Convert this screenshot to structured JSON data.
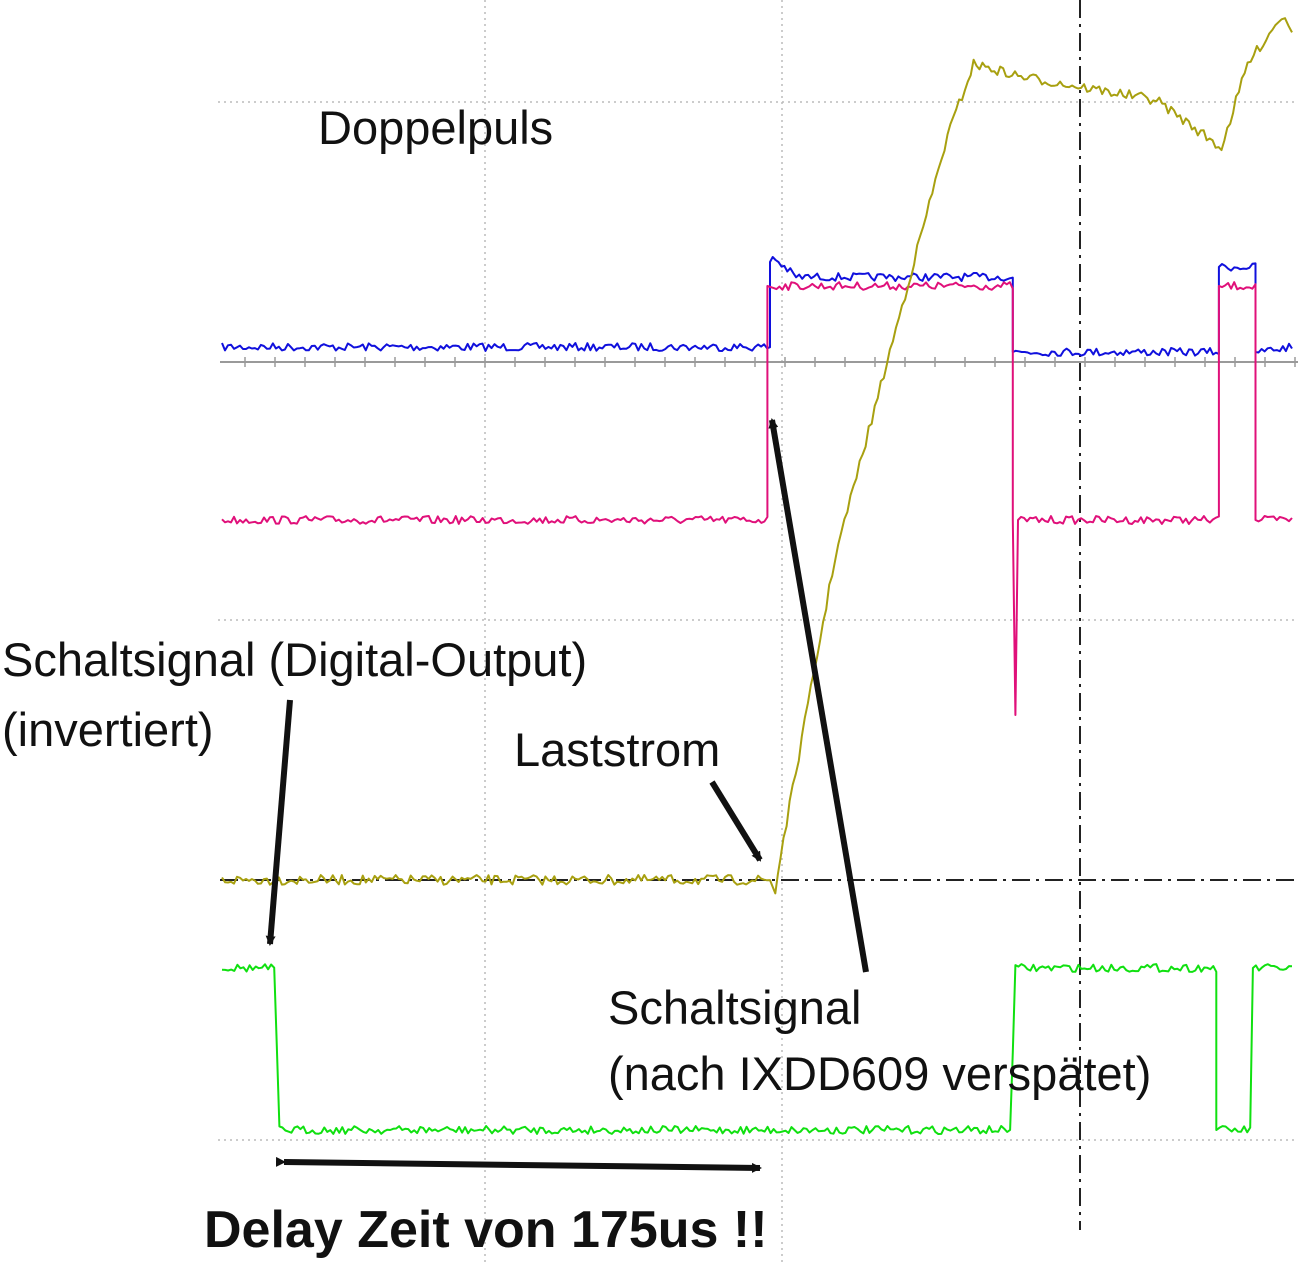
{
  "chart_data": {
    "type": "line",
    "title": "Doppelpuls",
    "xlabel": "",
    "ylabel": "",
    "grid": true,
    "time_unit": "us",
    "x_range": [
      -10,
      400
    ],
    "grid_x_divisions": 10,
    "series": [
      {
        "name": "Schaltsignal (nach IXDD609 verspätet)",
        "color": "#1010dd",
        "points": [
          [
            -10,
            0.05
          ],
          [
            200,
            0.05
          ],
          [
            200,
            0.9
          ],
          [
            201,
            0.95
          ],
          [
            210,
            0.75
          ],
          [
            293,
            0.75
          ],
          [
            293,
            0.0
          ],
          [
            372,
            0.0
          ],
          [
            372,
            0.85
          ],
          [
            386,
            0.85
          ],
          [
            386,
            0.0
          ],
          [
            400,
            0.05
          ]
        ]
      },
      {
        "name": "Schaltsignal (nach IXDD609 verspätet)",
        "color": "#e0107a",
        "points": [
          [
            -10,
            0.0
          ],
          [
            199,
            0.0
          ],
          [
            199,
            0.9
          ],
          [
            293,
            0.9
          ],
          [
            293,
            0.0
          ],
          [
            294,
            -0.75
          ],
          [
            295,
            0.0
          ],
          [
            372,
            0.0
          ],
          [
            372,
            0.9
          ],
          [
            386,
            0.9
          ],
          [
            386,
            0.0
          ],
          [
            400,
            0.0
          ]
        ]
      },
      {
        "name": "Laststrom",
        "color": "#a8a010",
        "points": [
          [
            -10,
            0.0
          ],
          [
            200,
            0.0
          ],
          [
            202,
            -0.05
          ],
          [
            204,
            0.1
          ],
          [
            225,
            1.35
          ],
          [
            268,
            3.1
          ],
          [
            278,
            3.4
          ],
          [
            295,
            3.35
          ],
          [
            348,
            3.25
          ],
          [
            373,
            3.05
          ],
          [
            383,
            3.4
          ],
          [
            396,
            3.6
          ],
          [
            400,
            3.55
          ]
        ]
      },
      {
        "name": "Schaltsignal (Digital-Output) (invertiert)",
        "color": "#10e010",
        "points": [
          [
            -10,
            1.0
          ],
          [
            10,
            1.0
          ],
          [
            12,
            0.0
          ],
          [
            292,
            0.0
          ],
          [
            294,
            1.0
          ],
          [
            371,
            1.0
          ],
          [
            371,
            0.0
          ],
          [
            384,
            0.0
          ],
          [
            385,
            1.0
          ],
          [
            400,
            1.0
          ]
        ]
      }
    ],
    "annotations": [
      {
        "text": "Doppelpuls"
      },
      {
        "text": "Schaltsignal (Digital-Output)",
        "text2": "(invertiert)"
      },
      {
        "text": "Laststrom"
      },
      {
        "text": "Schaltsignal",
        "text2": "(nach IXDD609 verspätet)"
      },
      {
        "text": "Delay Zeit von 175us !!",
        "bold": true
      }
    ]
  }
}
